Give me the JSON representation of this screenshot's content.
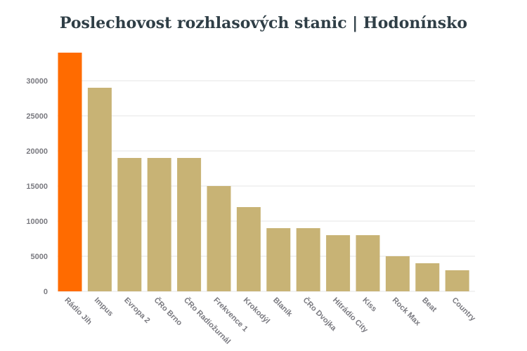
{
  "chart_data": {
    "type": "bar",
    "title": "Poslechovost rozhlasových stanic | Hodonínsko",
    "xlabel": "",
    "ylabel": "",
    "categories": [
      "Rádio Jih",
      "Impus",
      "Evropa 2",
      "ČRo Brno",
      "ČRo Radiožurnál",
      "Frekvence 1",
      "Krokodýl",
      "Blaník",
      "ČRo Dvojka",
      "Hitrádio City",
      "Kiss",
      "Rock Max",
      "Beat",
      "Country"
    ],
    "values": [
      34000,
      29000,
      19000,
      19000,
      19000,
      15000,
      12000,
      9000,
      9000,
      8000,
      8000,
      5000,
      4000,
      3000
    ],
    "ylim": [
      0,
      34000
    ],
    "yticks": [
      0,
      5000,
      10000,
      15000,
      20000,
      25000,
      30000
    ],
    "highlight_index": 0,
    "colors": {
      "highlight": "#ff6b00",
      "bar": "#c8b375",
      "grid": "#e6e6e6"
    },
    "grid": true,
    "legend": "none"
  }
}
